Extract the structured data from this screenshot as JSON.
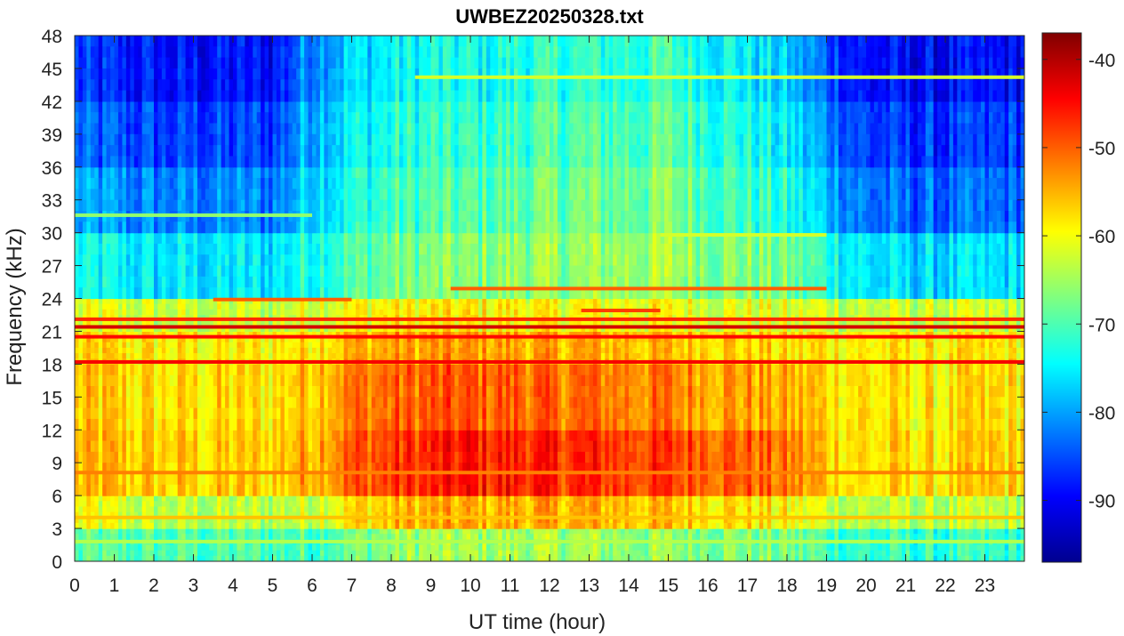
{
  "chart_data": {
    "type": "heatmap",
    "title": "UWBEZ20250328.txt",
    "xlabel": "UT time (hour)",
    "ylabel": "Frequency (kHz)",
    "xlim": [
      0,
      24
    ],
    "ylim": [
      0,
      48
    ],
    "x_ticks": [
      0,
      1,
      2,
      3,
      4,
      5,
      6,
      7,
      8,
      9,
      10,
      11,
      12,
      13,
      14,
      15,
      16,
      17,
      18,
      19,
      20,
      21,
      22,
      23
    ],
    "y_ticks": [
      0,
      3,
      6,
      9,
      12,
      15,
      18,
      21,
      24,
      27,
      30,
      33,
      36,
      39,
      42,
      45,
      48
    ],
    "colormap": "jet",
    "colorbar": {
      "clim": [
        -97,
        -37
      ],
      "ticks": [
        -90,
        -80,
        -70,
        -60,
        -50,
        -40
      ]
    },
    "x_hours": [
      0,
      1,
      2,
      3,
      4,
      5,
      6,
      7,
      8,
      9,
      10,
      11,
      12,
      13,
      14,
      15,
      16,
      17,
      18,
      19,
      20,
      21,
      22,
      23,
      24
    ],
    "frequency_bands_khz": [
      {
        "range": [
          0,
          3
        ],
        "dB": [
          -70,
          -70,
          -70,
          -70,
          -70,
          -70,
          -70,
          -68,
          -66,
          -65,
          -65,
          -65,
          -65,
          -65,
          -66,
          -66,
          -66,
          -67,
          -68,
          -70,
          -72,
          -72,
          -72,
          -72,
          -72
        ]
      },
      {
        "range": [
          3,
          6
        ],
        "dB": [
          -60,
          -62,
          -64,
          -64,
          -64,
          -64,
          -62,
          -58,
          -56,
          -55,
          -55,
          -55,
          -55,
          -55,
          -56,
          -56,
          -57,
          -58,
          -60,
          -62,
          -64,
          -64,
          -64,
          -64,
          -64
        ]
      },
      {
        "range": [
          6,
          12
        ],
        "dB": [
          -56,
          -56,
          -57,
          -57,
          -57,
          -57,
          -54,
          -50,
          -48,
          -47,
          -46,
          -46,
          -47,
          -47,
          -48,
          -48,
          -49,
          -50,
          -52,
          -56,
          -58,
          -58,
          -58,
          -57,
          -57
        ]
      },
      {
        "range": [
          12,
          18
        ],
        "dB": [
          -57,
          -57,
          -58,
          -58,
          -58,
          -58,
          -55,
          -52,
          -51,
          -50,
          -50,
          -50,
          -51,
          -51,
          -52,
          -52,
          -53,
          -54,
          -55,
          -57,
          -58,
          -59,
          -59,
          -58,
          -58
        ]
      },
      {
        "range": [
          18,
          21
        ],
        "dB": [
          -58,
          -58,
          -59,
          -59,
          -59,
          -59,
          -57,
          -55,
          -54,
          -54,
          -54,
          -54,
          -55,
          -55,
          -55,
          -56,
          -56,
          -57,
          -58,
          -58,
          -59,
          -59,
          -59,
          -59,
          -59
        ]
      },
      {
        "range": [
          21,
          24
        ],
        "dB": [
          -62,
          -62,
          -63,
          -63,
          -63,
          -63,
          -61,
          -60,
          -59,
          -59,
          -59,
          -59,
          -60,
          -60,
          -60,
          -60,
          -61,
          -61,
          -62,
          -62,
          -63,
          -63,
          -63,
          -63,
          -63
        ]
      },
      {
        "range": [
          24,
          30
        ],
        "dB": [
          -74,
          -75,
          -76,
          -76,
          -76,
          -76,
          -72,
          -70,
          -68,
          -67,
          -67,
          -66,
          -66,
          -66,
          -65,
          -65,
          -66,
          -67,
          -68,
          -72,
          -76,
          -77,
          -77,
          -77,
          -76
        ]
      },
      {
        "range": [
          30,
          36
        ],
        "dB": [
          -80,
          -81,
          -82,
          -82,
          -82,
          -82,
          -76,
          -73,
          -71,
          -70,
          -70,
          -69,
          -68,
          -68,
          -68,
          -67,
          -69,
          -71,
          -73,
          -78,
          -83,
          -84,
          -84,
          -84,
          -83
        ]
      },
      {
        "range": [
          36,
          42
        ],
        "dB": [
          -84,
          -85,
          -86,
          -86,
          -86,
          -86,
          -78,
          -75,
          -73,
          -72,
          -72,
          -71,
          -70,
          -70,
          -70,
          -69,
          -71,
          -73,
          -76,
          -81,
          -86,
          -87,
          -87,
          -87,
          -86
        ]
      },
      {
        "range": [
          42,
          48
        ],
        "dB": [
          -87,
          -88,
          -89,
          -89,
          -89,
          -89,
          -80,
          -77,
          -75,
          -74,
          -74,
          -73,
          -72,
          -72,
          -72,
          -71,
          -73,
          -75,
          -78,
          -84,
          -89,
          -90,
          -90,
          -90,
          -89
        ]
      }
    ],
    "narrowband_lines": [
      {
        "freq_khz": 18.2,
        "dB": -44,
        "from": 0,
        "to": 24
      },
      {
        "freq_khz": 21.4,
        "dB": -42,
        "from": 0,
        "to": 24
      },
      {
        "freq_khz": 22.1,
        "dB": -47,
        "from": 0,
        "to": 24
      },
      {
        "freq_khz": 20.5,
        "dB": -45,
        "from": 0,
        "to": 24
      },
      {
        "freq_khz": 24.9,
        "dB": -50,
        "from": 9.5,
        "to": 19
      },
      {
        "freq_khz": 23.9,
        "dB": -50,
        "from": 3.5,
        "to": 7
      },
      {
        "freq_khz": 22.9,
        "dB": -48,
        "from": 12.8,
        "to": 14.8
      },
      {
        "freq_khz": 8.1,
        "dB": -52,
        "from": 0,
        "to": 24
      },
      {
        "freq_khz": 4.0,
        "dB": -56,
        "from": 0,
        "to": 24
      },
      {
        "freq_khz": 44.2,
        "dB": -62,
        "from": 8.6,
        "to": 24
      },
      {
        "freq_khz": 31.6,
        "dB": -66,
        "from": 0,
        "to": 6
      },
      {
        "freq_khz": 29.8,
        "dB": -62,
        "from": 14.8,
        "to": 19
      },
      {
        "freq_khz": 1.8,
        "dB": -64,
        "from": 0,
        "to": 24
      }
    ]
  }
}
